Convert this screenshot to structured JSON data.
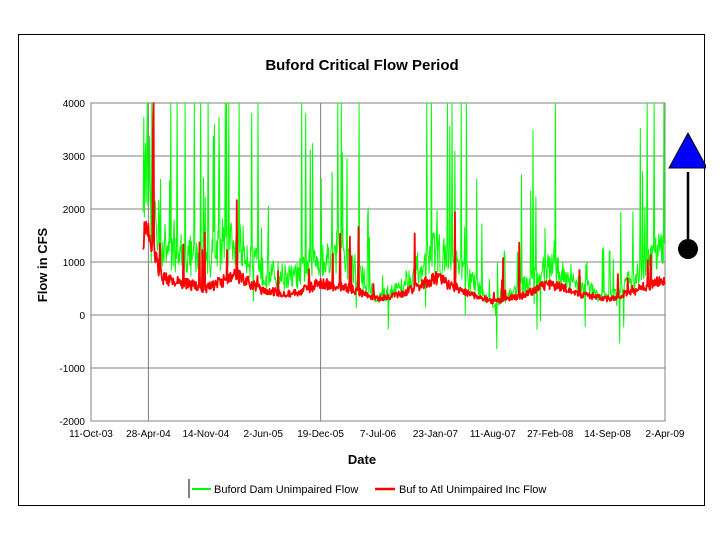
{
  "chart_data": {
    "type": "line",
    "title": "Buford Critical Flow Period",
    "xlabel": "Date",
    "ylabel": "Flow in CFS",
    "ylim": [
      -2000,
      4000
    ],
    "yticks": [
      4000,
      3000,
      2000,
      1000,
      0,
      -1000,
      -2000
    ],
    "xticks": [
      "11-Oct-03",
      "28-Apr-04",
      "14-Nov-04",
      "2-Jun-05",
      "19-Dec-05",
      "7-Jul-06",
      "23-Jan-07",
      "11-Aug-07",
      "27-Feb-08",
      "14-Sep-08",
      "2-Apr-09"
    ],
    "x_range": [
      "11-Oct-03",
      "2-Apr-09"
    ],
    "data_start": "10-Apr-04",
    "grid": "major",
    "legend_position": "bottom",
    "series": [
      {
        "name": "Buford Dam Unimpaired Flow",
        "color": "#00ff00",
        "x": [
          "28-Apr-04",
          "15-Jun-04",
          "14-Nov-04",
          "1-Mar-05",
          "2-Jun-05",
          "15-Sep-05",
          "19-Dec-05",
          "1-Apr-06",
          "7-Jul-06",
          "1-Oct-06",
          "23-Jan-07",
          "1-May-07",
          "11-Aug-07",
          "15-Nov-07",
          "27-Feb-08",
          "1-Jun-08",
          "14-Sep-08",
          "15-Dec-08",
          "2-Apr-09"
        ],
        "values": [
          2700,
          1300,
          1000,
          1400,
          800,
          700,
          1100,
          1000,
          300,
          600,
          1200,
          800,
          200,
          500,
          900,
          600,
          300,
          700,
          1300
        ]
      },
      {
        "name": "Buf to Atl Unimpaired Inc Flow",
        "color": "#ff0000",
        "x": [
          "28-Apr-04",
          "15-Jun-04",
          "14-Nov-04",
          "1-Mar-05",
          "2-Jun-05",
          "15-Sep-05",
          "19-Dec-05",
          "1-Apr-06",
          "7-Jul-06",
          "1-Oct-06",
          "23-Jan-07",
          "1-May-07",
          "11-Aug-07",
          "15-Nov-07",
          "27-Feb-08",
          "1-Jun-08",
          "14-Sep-08",
          "15-Dec-08",
          "2-Apr-09"
        ],
        "values": [
          1500,
          700,
          500,
          750,
          450,
          400,
          600,
          500,
          300,
          400,
          700,
          450,
          250,
          350,
          600,
          400,
          300,
          450,
          700
        ]
      }
    ]
  },
  "annotation": {
    "triangle_color": "#0000ff",
    "dot_color": "#000000"
  }
}
